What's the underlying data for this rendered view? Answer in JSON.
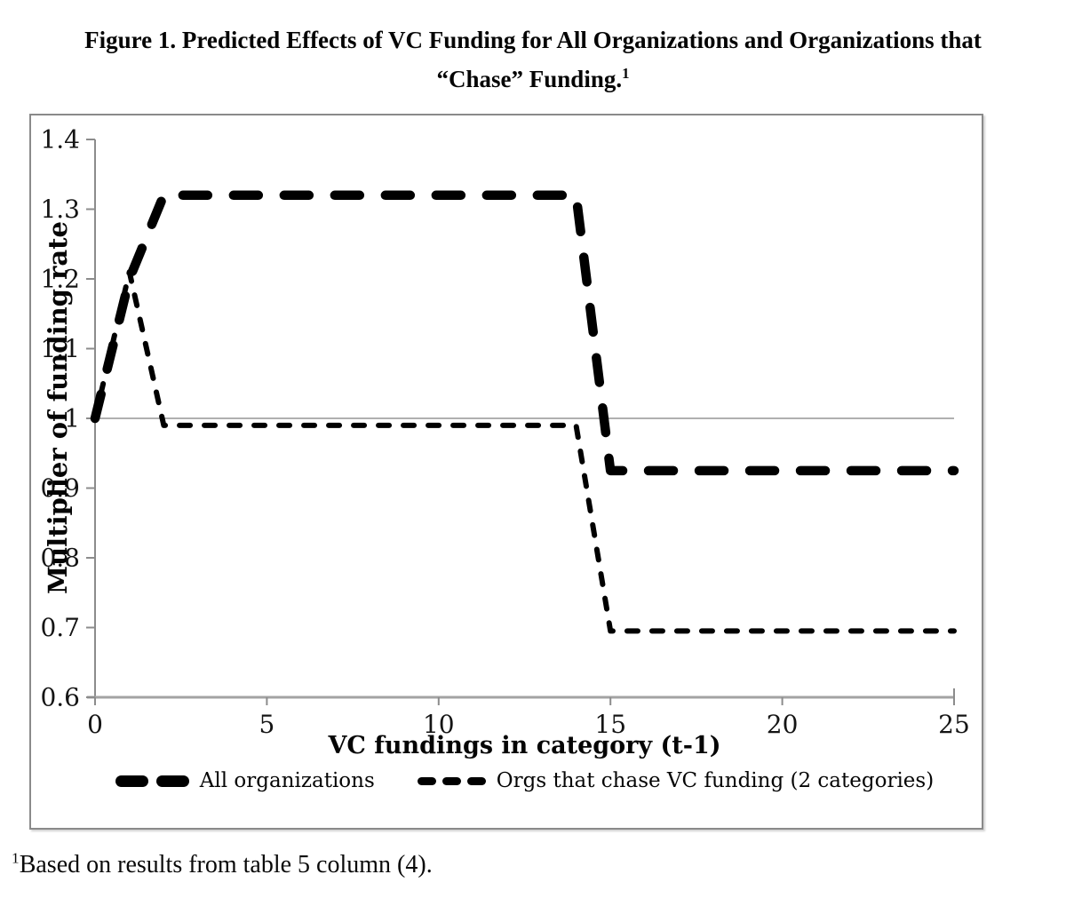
{
  "figure": {
    "title_line1": "Figure 1. Predicted Effects of VC Funding for All Organizations and Organizations that",
    "title_line2": "“Chase” Funding.",
    "title_footnote_marker": "1",
    "footnote_marker": "1",
    "footnote_text": "Based on results from table 5 column (4)."
  },
  "chart_data": {
    "type": "line",
    "title": "",
    "xlabel": "VC fundings in category (t-1)",
    "ylabel": "Multiplier of funding rate",
    "xlim": [
      0,
      25
    ],
    "ylim": [
      0.6,
      1.4
    ],
    "x_ticks": [
      0,
      5,
      10,
      15,
      20,
      25
    ],
    "y_ticks": [
      0.6,
      0.7,
      0.8,
      0.9,
      1,
      1.1,
      1.2,
      1.3,
      1.4
    ],
    "grid": false,
    "reference_line_y": 1,
    "legend_position": "bottom",
    "series": [
      {
        "name": "All organizations",
        "dash_style": "long-thick",
        "x": [
          0,
          1,
          2,
          14,
          15,
          25
        ],
        "y": [
          1.0,
          1.2,
          1.32,
          1.32,
          0.925,
          0.925
        ]
      },
      {
        "name": "Orgs that chase VC funding (2 categories)",
        "dash_style": "short-thin",
        "x": [
          0,
          1,
          2,
          14,
          15,
          25
        ],
        "y": [
          1.0,
          1.21,
          0.99,
          0.99,
          0.695,
          0.695
        ]
      }
    ],
    "colors": {
      "line": "#000000",
      "axis": "#8c8c8c",
      "x_axis": "#a3a3a3",
      "reference_line": "#808080",
      "text": "#141414"
    }
  }
}
